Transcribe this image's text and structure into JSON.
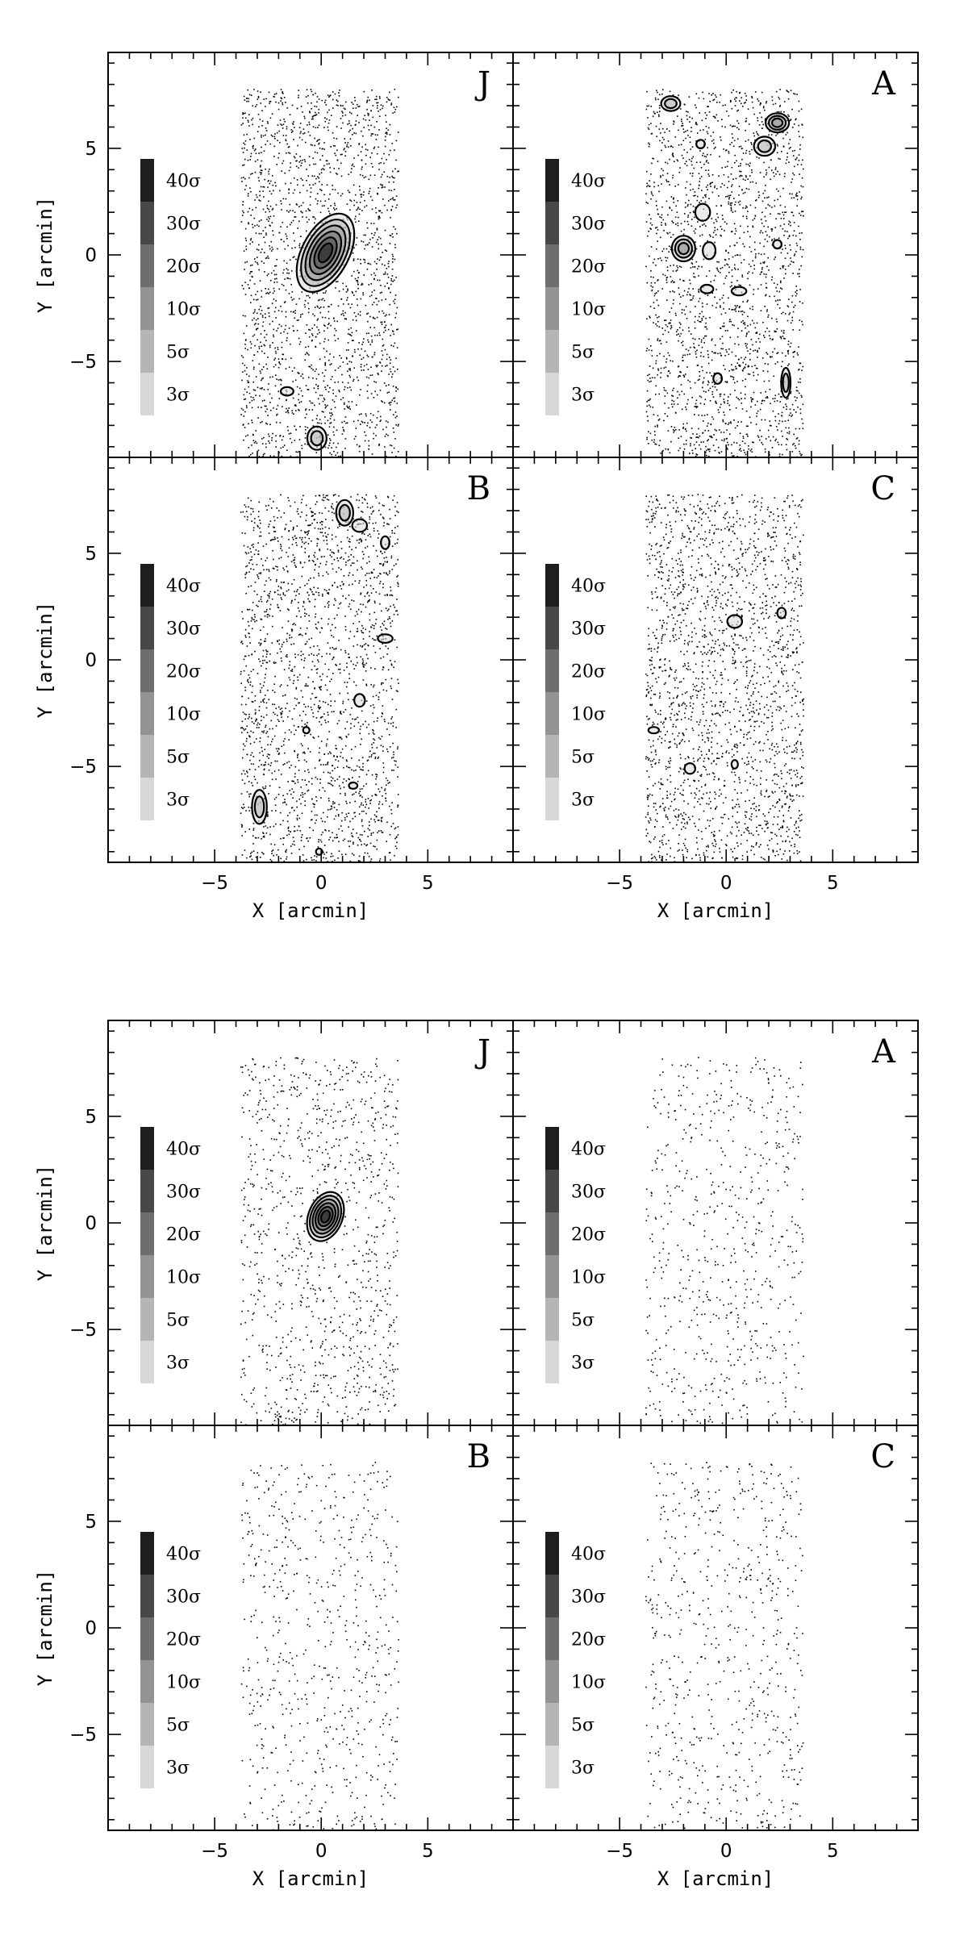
{
  "chart_data": {
    "type": "scatter",
    "layout": "two figures, each a 2x2 grid of panels",
    "x_axis": {
      "label": "X [arcmin]",
      "range": [
        -10,
        9
      ],
      "tick_labels": [
        -5,
        0,
        5
      ]
    },
    "y_axis": {
      "label": "Y [arcmin]",
      "range": [
        -9.5,
        9.5
      ],
      "tick_labels": [
        -5,
        0,
        5
      ]
    },
    "legend": {
      "placement": "left inside each panel",
      "levels": [
        {
          "label": "40σ",
          "color": "#1e1e1e"
        },
        {
          "label": "30σ",
          "color": "#484848"
        },
        {
          "label": "20σ",
          "color": "#6e6e6e"
        },
        {
          "label": "10σ",
          "color": "#939393"
        },
        {
          "label": "5σ",
          "color": "#b5b5b5"
        },
        {
          "label": "3σ",
          "color": "#d8d8d8"
        }
      ]
    },
    "point_field": {
      "x_range": [
        -3.8,
        3.6
      ],
      "y_range": [
        -9.5,
        7.8
      ]
    },
    "figures": [
      {
        "panels": [
          {
            "label": "J",
            "point_density": "high",
            "sources": [
              {
                "x": 0.2,
                "y": 0.1,
                "rx": 1.1,
                "ry": 2.0,
                "angle": 28,
                "level": 40
              },
              {
                "x": -1.6,
                "y": -6.4,
                "rx": 0.3,
                "ry": 0.2,
                "angle": 0,
                "level": 3
              },
              {
                "x": -0.2,
                "y": -8.6,
                "rx": 0.45,
                "ry": 0.55,
                "angle": 0,
                "level": 5
              }
            ]
          },
          {
            "label": "A",
            "point_density": "high",
            "sources": [
              {
                "x": -2.6,
                "y": 7.1,
                "rx": 0.45,
                "ry": 0.35,
                "angle": 0,
                "level": 5
              },
              {
                "x": 2.4,
                "y": 6.2,
                "rx": 0.55,
                "ry": 0.45,
                "angle": 0,
                "level": 10
              },
              {
                "x": 1.8,
                "y": 5.1,
                "rx": 0.5,
                "ry": 0.45,
                "angle": 0,
                "level": 5
              },
              {
                "x": -1.2,
                "y": 5.2,
                "rx": 0.2,
                "ry": 0.2,
                "angle": 0,
                "level": 3
              },
              {
                "x": -1.1,
                "y": 2.0,
                "rx": 0.35,
                "ry": 0.4,
                "angle": 0,
                "level": 3
              },
              {
                "x": -2.0,
                "y": 0.3,
                "rx": 0.55,
                "ry": 0.6,
                "angle": 0,
                "level": 10
              },
              {
                "x": -0.8,
                "y": 0.2,
                "rx": 0.3,
                "ry": 0.4,
                "angle": 0,
                "level": 3
              },
              {
                "x": 2.4,
                "y": 0.5,
                "rx": 0.2,
                "ry": 0.2,
                "angle": 0,
                "level": 3
              },
              {
                "x": -0.9,
                "y": -1.6,
                "rx": 0.3,
                "ry": 0.2,
                "angle": 0,
                "level": 3
              },
              {
                "x": 0.6,
                "y": -1.7,
                "rx": 0.35,
                "ry": 0.2,
                "angle": 0,
                "level": 3
              },
              {
                "x": -0.4,
                "y": -5.8,
                "rx": 0.2,
                "ry": 0.25,
                "angle": 0,
                "level": 3
              },
              {
                "x": 2.8,
                "y": -6.0,
                "rx": 0.22,
                "ry": 0.7,
                "angle": 0,
                "level": 5
              }
            ]
          },
          {
            "label": "B",
            "point_density": "high",
            "sources": [
              {
                "x": 1.1,
                "y": 6.9,
                "rx": 0.4,
                "ry": 0.6,
                "angle": 0,
                "level": 5
              },
              {
                "x": 1.8,
                "y": 6.3,
                "rx": 0.35,
                "ry": 0.3,
                "angle": 0,
                "level": 3
              },
              {
                "x": 3.0,
                "y": 5.5,
                "rx": 0.2,
                "ry": 0.3,
                "angle": 0,
                "level": 3
              },
              {
                "x": 3.0,
                "y": 1.0,
                "rx": 0.35,
                "ry": 0.2,
                "angle": 0,
                "level": 3
              },
              {
                "x": 1.8,
                "y": -1.9,
                "rx": 0.25,
                "ry": 0.3,
                "angle": 0,
                "level": 3
              },
              {
                "x": -0.7,
                "y": -3.3,
                "rx": 0.15,
                "ry": 0.15,
                "angle": 0,
                "level": 3
              },
              {
                "x": 1.5,
                "y": -5.9,
                "rx": 0.2,
                "ry": 0.15,
                "angle": 0,
                "level": 3
              },
              {
                "x": -2.9,
                "y": -6.9,
                "rx": 0.35,
                "ry": 0.8,
                "angle": 0,
                "level": 5
              },
              {
                "x": -0.1,
                "y": -9.0,
                "rx": 0.15,
                "ry": 0.15,
                "angle": 0,
                "level": 3
              }
            ]
          },
          {
            "label": "C",
            "point_density": "high",
            "sources": [
              {
                "x": 0.4,
                "y": 1.8,
                "rx": 0.35,
                "ry": 0.3,
                "angle": 0,
                "level": 3
              },
              {
                "x": 2.6,
                "y": 2.2,
                "rx": 0.2,
                "ry": 0.25,
                "angle": 0,
                "level": 3
              },
              {
                "x": -3.4,
                "y": -3.3,
                "rx": 0.25,
                "ry": 0.15,
                "angle": 0,
                "level": 3
              },
              {
                "x": -1.7,
                "y": -5.1,
                "rx": 0.25,
                "ry": 0.25,
                "angle": 0,
                "level": 3
              },
              {
                "x": 0.4,
                "y": -4.9,
                "rx": 0.15,
                "ry": 0.2,
                "angle": 0,
                "level": 3
              }
            ]
          }
        ]
      },
      {
        "panels": [
          {
            "label": "J",
            "point_density": "medium",
            "sources": [
              {
                "x": 0.2,
                "y": 0.3,
                "rx": 0.8,
                "ry": 1.2,
                "angle": 22,
                "level": 40
              }
            ]
          },
          {
            "label": "A",
            "point_density": "low",
            "sources": []
          },
          {
            "label": "B",
            "point_density": "low",
            "sources": []
          },
          {
            "label": "C",
            "point_density": "low",
            "sources": []
          }
        ]
      }
    ]
  }
}
